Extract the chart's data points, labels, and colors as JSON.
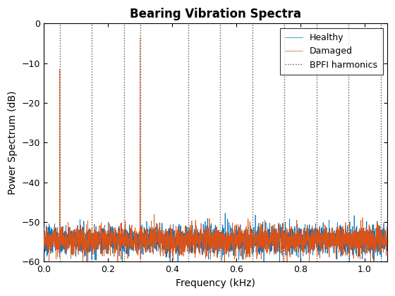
{
  "title": "Bearing Vibration Spectra",
  "xlabel": "Frequency (kHz)",
  "ylabel": "Power Spectrum (dB)",
  "xlim": [
    0,
    1.07
  ],
  "ylim": [
    -60,
    0
  ],
  "yticks": [
    0,
    -10,
    -20,
    -30,
    -40,
    -50,
    -60
  ],
  "xticks": [
    0,
    0.2,
    0.4,
    0.6,
    0.8,
    1.0
  ],
  "healthy_color": "#0072BD",
  "damaged_color": "#D95319",
  "bpfi_color": "#555555",
  "noise_floor": -54.5,
  "noise_std": 1.8,
  "bpfi_harmonics": [
    0.05,
    0.15,
    0.25,
    0.3,
    0.45,
    0.55,
    0.65,
    0.75,
    0.85,
    0.95,
    1.05
  ],
  "damaged_peak1_freq": 0.05,
  "damaged_peak1_val": -11.5,
  "damaged_peak2_freq": 0.3,
  "damaged_peak2_val": -3.5,
  "n_points": 3000,
  "freq_max": 1.07,
  "seed": 7
}
